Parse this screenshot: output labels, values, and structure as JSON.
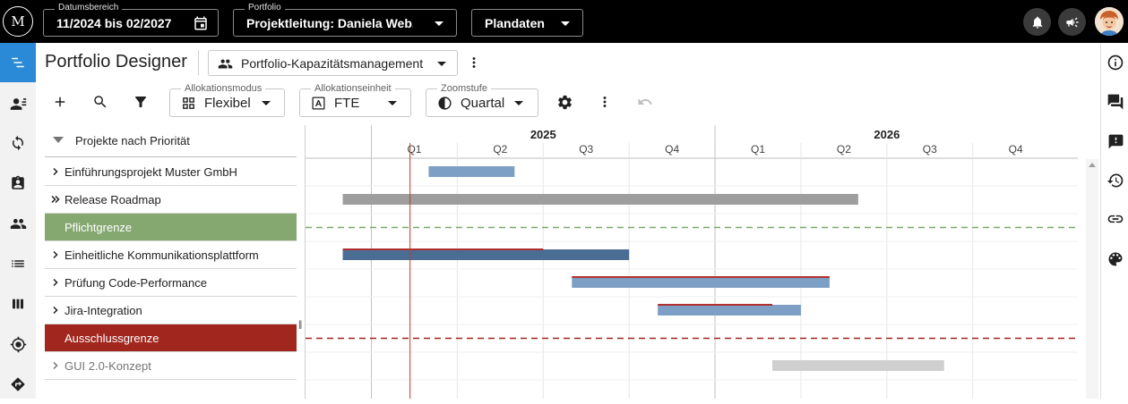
{
  "topbar": {
    "logo": "M",
    "date_range": {
      "label": "Datumsbereich",
      "value": "11/2024 bis 02/2027"
    },
    "portfolio": {
      "label": "Portfolio",
      "value": "Projektleitung: Daniela Web..."
    },
    "plandata": {
      "value": "Plandaten"
    }
  },
  "header": {
    "title": "Portfolio Designer",
    "view": "Portfolio-Kapazitätsmanagement"
  },
  "toolbar": {
    "allocation_mode": {
      "label": "Allokationsmodus",
      "value": "Flexibel"
    },
    "allocation_unit": {
      "label": "Allokationseinheit",
      "value": "FTE"
    },
    "zoom": {
      "label": "Zoomstufe",
      "value": "Quartal"
    }
  },
  "list": {
    "header": "Projekte nach Priorität",
    "rows": [
      {
        "label": "Einführungsprojekt Muster GmbH",
        "kind": "project",
        "expand": "chevron"
      },
      {
        "label": "Release Roadmap",
        "kind": "project",
        "expand": "double-chevron"
      },
      {
        "label": "Pflichtgrenze",
        "kind": "limit-green"
      },
      {
        "label": "Einheitliche Kommunikationsplattform",
        "kind": "project",
        "expand": "chevron"
      },
      {
        "label": "Prüfung Code-Performance",
        "kind": "project",
        "expand": "chevron"
      },
      {
        "label": "Jira-Integration",
        "kind": "project",
        "expand": "chevron"
      },
      {
        "label": "Ausschlussgrenze",
        "kind": "limit-red"
      },
      {
        "label": "GUI 2.0-Konzept",
        "kind": "project-muted",
        "expand": "chevron"
      }
    ]
  },
  "timeline": {
    "years": [
      {
        "label": "2025",
        "start": "2025-01"
      },
      {
        "label": "2026",
        "start": "2026-01"
      }
    ],
    "quarters": [
      {
        "label": "Q1",
        "start": "2025-01"
      },
      {
        "label": "Q2",
        "start": "2025-04"
      },
      {
        "label": "Q3",
        "start": "2025-07"
      },
      {
        "label": "Q4",
        "start": "2025-10"
      },
      {
        "label": "Q1",
        "start": "2026-01"
      },
      {
        "label": "Q2",
        "start": "2026-04"
      },
      {
        "label": "Q3",
        "start": "2026-07"
      },
      {
        "label": "Q4",
        "start": "2026-10"
      }
    ],
    "visible_range": [
      "2024-11",
      "2027-02"
    ],
    "today": "2025-02",
    "bars": [
      {
        "row": 0,
        "start": "2025-03",
        "end": "2025-05",
        "color": "#7d9fc5"
      },
      {
        "row": 1,
        "start": "2024-12",
        "end": "2026-05",
        "color": "#9e9e9e"
      },
      {
        "row": 3,
        "start": "2024-12",
        "end": "2025-09",
        "color": "#4a6d94",
        "overlay_end": "2025-06"
      },
      {
        "row": 4,
        "start": "2025-08",
        "end": "2026-04",
        "color": "#7d9fc5",
        "overlay_end": "2026-04"
      },
      {
        "row": 5,
        "start": "2025-11",
        "end": "2026-03",
        "color": "#7d9fc5",
        "overlay_end": "2026-02"
      },
      {
        "row": 7,
        "start": "2026-03",
        "end": "2026-08",
        "color": "#cfcfcf"
      }
    ],
    "limits": [
      {
        "row": 2,
        "color": "#7aa86a"
      },
      {
        "row": 6,
        "color": "#a0261e"
      }
    ]
  },
  "colors": {
    "accent": "#2a8ad8",
    "today_line": "#c0392b",
    "overlay_line": "#b03030"
  },
  "icons": {
    "rail": [
      "timeline-icon",
      "user-list-icon",
      "cycle-icon",
      "badge-icon",
      "group-icon",
      "list-icon",
      "columns-icon",
      "target-icon",
      "direction-icon"
    ],
    "right": [
      "info-icon",
      "comments-icon",
      "feedback-icon",
      "history-icon",
      "link-icon",
      "palette-icon"
    ]
  }
}
